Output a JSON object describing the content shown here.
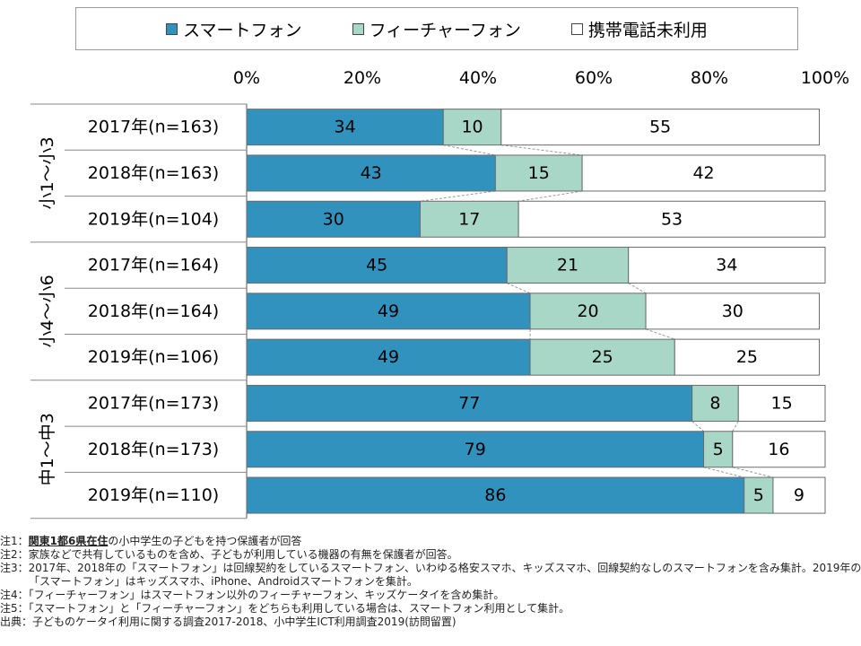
{
  "legend": {
    "smartphone": "スマートフォン",
    "featurephone": "フィーチャーフォン",
    "none": "携帯電話未利用"
  },
  "colors": {
    "smartphone": "#3193bd",
    "featurephone": "#a8d7c7",
    "none": "#ffffff",
    "bar_outline": "#6a6a6a"
  },
  "chart_data": {
    "type": "bar",
    "orientation": "horizontal",
    "stacked": true,
    "xlim": [
      0,
      100
    ],
    "x_ticks": [
      "0%",
      "20%",
      "40%",
      "60%",
      "80%",
      "100%"
    ],
    "groups": [
      "小1～小3",
      "小4～小6",
      "中1～中3"
    ],
    "categories": [
      "2017年(n=163)",
      "2018年(n=163)",
      "2019年(n=104)",
      "2017年(n=164)",
      "2018年(n=164)",
      "2019年(n=106)",
      "2017年(n=173)",
      "2018年(n=173)",
      "2019年(n=110)"
    ],
    "series": [
      {
        "name": "スマートフォン",
        "values": [
          34,
          43,
          30,
          45,
          49,
          49,
          77,
          79,
          86
        ]
      },
      {
        "name": "フィーチャーフォン",
        "values": [
          10,
          15,
          17,
          21,
          20,
          25,
          8,
          5,
          5
        ]
      },
      {
        "name": "携帯電話未利用",
        "values": [
          55,
          42,
          53,
          34,
          30,
          25,
          15,
          16,
          9
        ]
      }
    ]
  },
  "notes": {
    "n1_prefix": "注1：",
    "n1_strong": "関東1都6県在住",
    "n1_rest": "の小中学生の子どもを持つ保護者が回答",
    "n2": "注2：家族などで共有しているものを含め、子どもが利用している機器の有無を保護者が回答。",
    "n3a": "注3：2017年、2018年の「スマートフォン」は回線契約をしているスマートフォン、いわゆる格安スマホ、キッズスマホ、回線契約なしのスマートフォンを含み集計。2019年の",
    "n3b": "「スマートフォン」はキッズスマホ、iPhone、Androidスマートフォンを集計。",
    "n4": "注4：「フィーチャーフォン」はスマートフォン以外のフィーチャーフォン、キッズケータイを含め集計。",
    "n5": "注5：「スマートフォン」と「フィーチャーフォン」をどちらも利用している場合は、スマートフォン利用として集計。",
    "source": "出典：子どものケータイ利用に関する調査2017-2018、小中学生ICT利用調査2019(訪問留置)"
  }
}
